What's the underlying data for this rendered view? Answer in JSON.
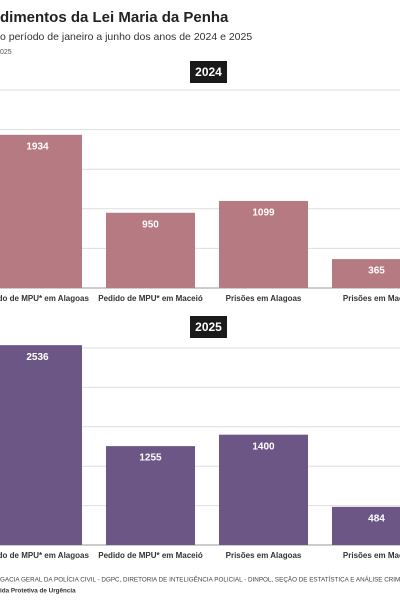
{
  "header": {
    "title": "dimentos da Lei Maria da Penha",
    "subtitle": "o período de janeiro a junho dos anos de 2024 e 2025",
    "note": "025"
  },
  "chart_data": [
    {
      "type": "bar",
      "title": "2024",
      "categories": [
        "edido de MPU* em Alagoas",
        "Pedido de MPU* em Maceió",
        "Prisões em Alagoas",
        "Prisões em Macei"
      ],
      "values": [
        1934,
        950,
        1099,
        365
      ],
      "color": "#b67a82",
      "ylim": [
        0,
        2500
      ],
      "yticks": [
        500,
        1000,
        1500,
        2000,
        2500
      ],
      "grid": true
    },
    {
      "type": "bar",
      "title": "2025",
      "categories": [
        "edido de MPU* em Alagoas",
        "Pedido de MPU* em Maceió",
        "Prisões em Alagoas",
        "Prisões em Macei"
      ],
      "values": [
        2536,
        1255,
        1400,
        484
      ],
      "color": "#6b5686",
      "ylim": [
        0,
        2500
      ],
      "yticks": [
        500,
        1000,
        1500,
        2000,
        2500
      ],
      "grid": true
    }
  ],
  "footer": {
    "source": "GACIA GERAL DA POLÍCIA CIVIL - DGPC, DIRETORIA DE INTELIGÊNCIA POLICIAL - DINPOL, SEÇÃO DE ESTATÍSTICA E ANÁLISE CRIMINAL - SEA",
    "note": "ida Protetiva de Urgência"
  }
}
